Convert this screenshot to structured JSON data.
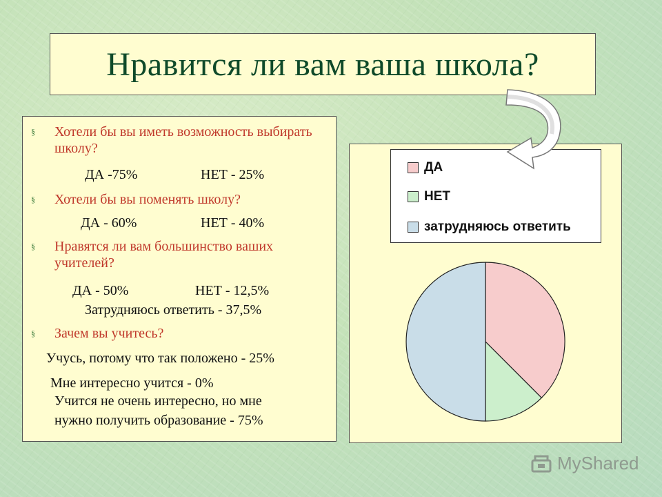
{
  "slide": {
    "title": "Нравится ли вам ваша школа?"
  },
  "survey": {
    "q1": {
      "question": "Хотели бы вы иметь возможность выбирать школу?",
      "yes": "ДА -75%",
      "no": "НЕТ - 25%"
    },
    "q2": {
      "question": "Хотели бы вы поменять школу?",
      "yes": "ДА - 60%",
      "no": "НЕТ - 40%"
    },
    "q3": {
      "question": "Нравятся ли вам большинство ваших учителей?",
      "yes": "ДА - 50%",
      "no": "НЕТ - 12,5%",
      "unsure": "Затрудняюсь ответить - 37,5%"
    },
    "q4": {
      "question": "Зачем вы учитесь?",
      "a1": "Учусь, потому что так положено - 25%",
      "a2": "Мне интересно учится - 0%",
      "a3_line1": "Учится  не очень интересно, но мне",
      "a3_line2": "нужно получить образование - 75%"
    }
  },
  "chart_data": {
    "type": "pie",
    "categories": [
      "ДА",
      "НЕТ",
      "затрудняюсь ответить"
    ],
    "values": [
      37.5,
      12.5,
      50
    ],
    "colors": [
      "#f7cccc",
      "#ccefcc",
      "#c9dde8"
    ],
    "legend_position": "top"
  },
  "watermark": {
    "text": "MyShared"
  }
}
